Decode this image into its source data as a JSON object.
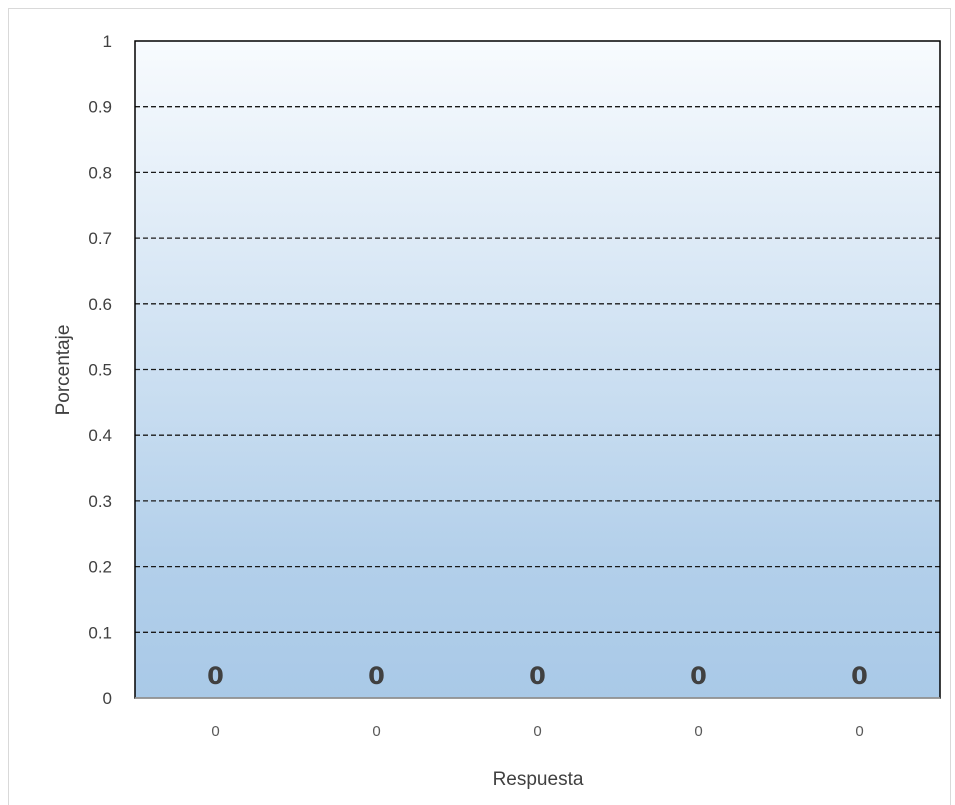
{
  "chart_data": {
    "type": "bar",
    "categories": [
      "0",
      "0",
      "0",
      "0",
      "0"
    ],
    "values": [
      0,
      0,
      0,
      0,
      0
    ],
    "data_labels": [
      "0",
      "0",
      "0",
      "0",
      "0"
    ],
    "xlabel": "Respuesta",
    "ylabel": "Porcentaje",
    "ylim": [
      0,
      1
    ],
    "yticks": [
      "0",
      "0.1",
      "0.2",
      "0.3",
      "0.4",
      "0.5",
      "0.6",
      "0.7",
      "0.8",
      "0.9",
      "1"
    ],
    "grid": true,
    "grid_style": "dashed",
    "legend": "none",
    "colors": {
      "plot_top": "#f8fbfe",
      "plot_bottom": "#a9c9e7",
      "grid": "#1a1a1a",
      "border": "#000000",
      "text": "#404040"
    }
  }
}
